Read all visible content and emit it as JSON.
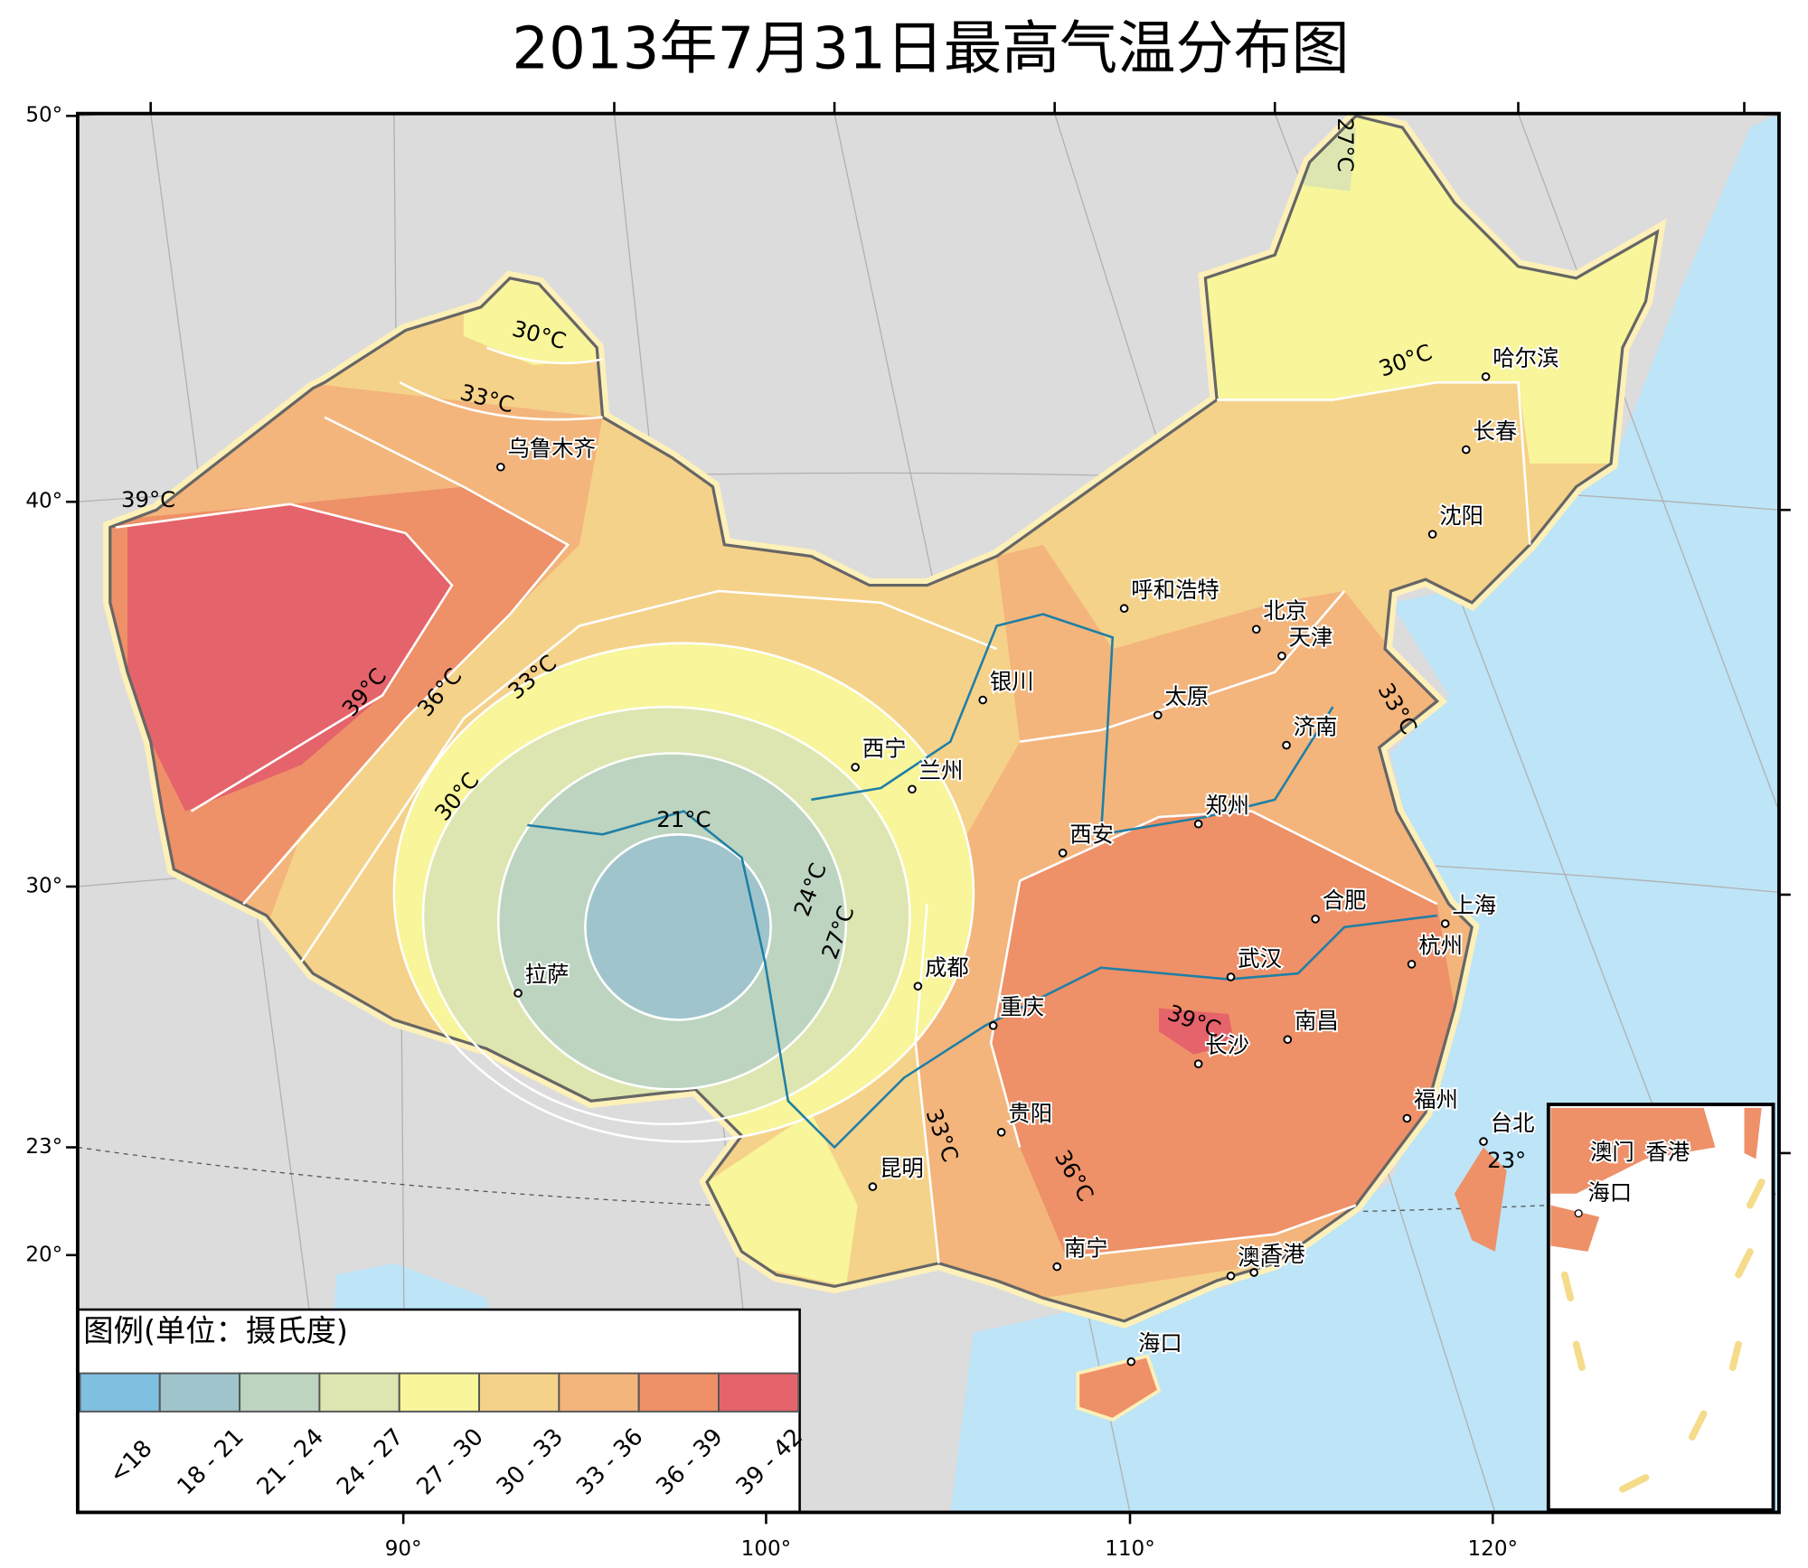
{
  "title": "2013年7月31日最高气温分布图",
  "axes": {
    "lat_labels": [
      "50°",
      "40°",
      "30°",
      "23°",
      "20°"
    ],
    "lon_labels": [
      "90°",
      "100°",
      "110°",
      "120°"
    ]
  },
  "cities": [
    "乌鲁木齐",
    "拉萨",
    "西宁",
    "兰州",
    "银川",
    "呼和浩特",
    "北京",
    "天津",
    "太原",
    "济南",
    "郑州",
    "西安",
    "成都",
    "重庆",
    "合肥",
    "武汉",
    "南昌",
    "长沙",
    "上海",
    "杭州",
    "福州",
    "台北",
    "贵阳",
    "昆明",
    "南宁",
    "澳门",
    "香港",
    "海口",
    "哈尔滨",
    "长春",
    "沈阳"
  ],
  "isotherm_labels": [
    "30°C",
    "33°C",
    "39°C",
    "39°C",
    "36°C",
    "33°C",
    "30°C",
    "21°C",
    "24°C",
    "27°C",
    "30°C",
    "33°C",
    "39°C",
    "33°C",
    "36°C",
    "23°",
    "27°C"
  ],
  "inset_labels": [
    "澳门",
    "香港",
    "海口"
  ],
  "legend": {
    "title": "图例(单位：摄氏度)",
    "items": [
      {
        "label": "<18",
        "color": "#7fbfe0"
      },
      {
        "label": "18 - 21",
        "color": "#9fc4cc"
      },
      {
        "label": "21 - 24",
        "color": "#bcd4c0"
      },
      {
        "label": "24 - 27",
        "color": "#dde6b0"
      },
      {
        "label": "27 - 30",
        "color": "#f8f59a"
      },
      {
        "label": "30 - 33",
        "color": "#f5d28a"
      },
      {
        "label": "33 - 36",
        "color": "#f3b57c"
      },
      {
        "label": "36 - 39",
        "color": "#ee9068"
      },
      {
        "label": "39 - 42",
        "color": "#e5636a"
      }
    ]
  }
}
